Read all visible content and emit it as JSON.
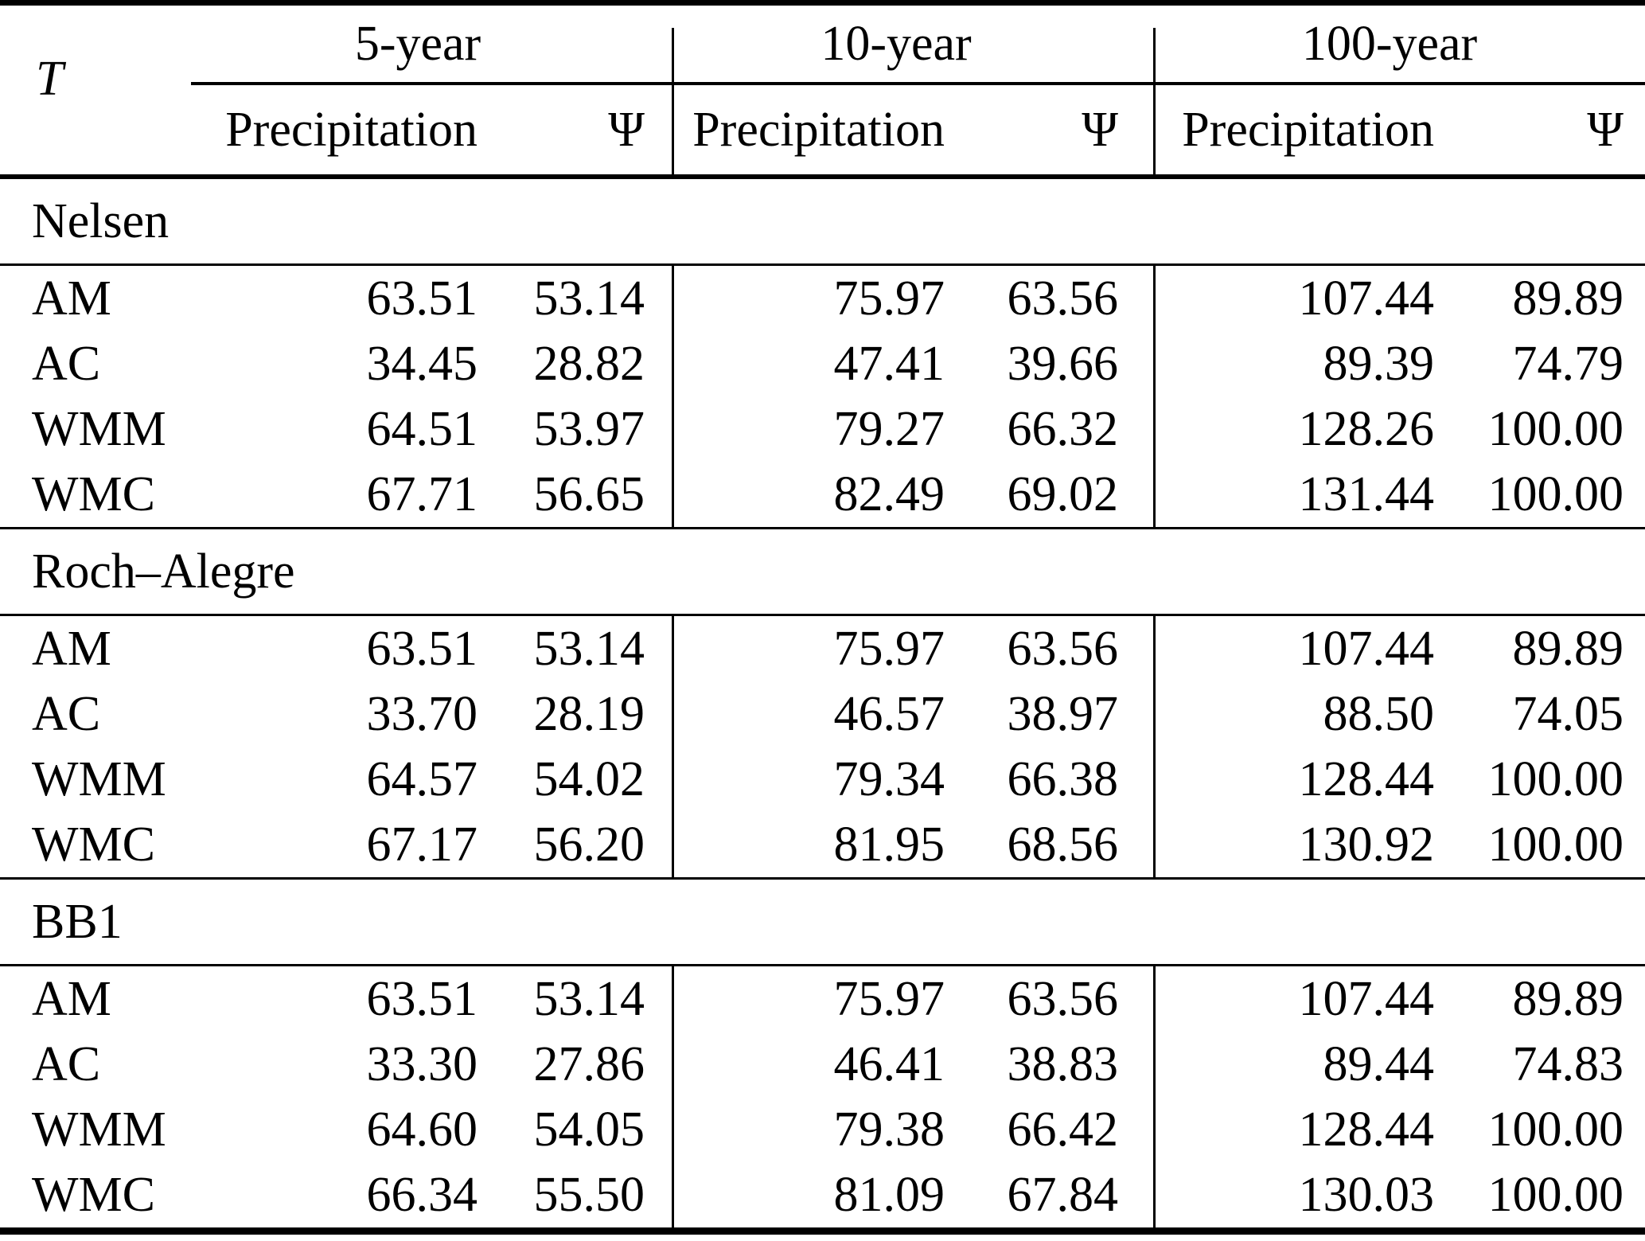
{
  "table": {
    "corner_label": "T",
    "groups": [
      {
        "label": "5-year"
      },
      {
        "label": "10-year"
      },
      {
        "label": "100-year"
      }
    ],
    "subheaders": {
      "precipitation": "Precipitation",
      "psi": "Ψ"
    },
    "sections": [
      {
        "title": "Nelsen",
        "rows": [
          {
            "label": "AM",
            "values": [
              "63.51",
              "53.14",
              "75.97",
              "63.56",
              "107.44",
              "89.89"
            ]
          },
          {
            "label": "AC",
            "values": [
              "34.45",
              "28.82",
              "47.41",
              "39.66",
              "89.39",
              "74.79"
            ]
          },
          {
            "label": "WMM",
            "values": [
              "64.51",
              "53.97",
              "79.27",
              "66.32",
              "128.26",
              "100.00"
            ]
          },
          {
            "label": "WMC",
            "values": [
              "67.71",
              "56.65",
              "82.49",
              "69.02",
              "131.44",
              "100.00"
            ]
          }
        ]
      },
      {
        "title": "Roch–Alegre",
        "rows": [
          {
            "label": "AM",
            "values": [
              "63.51",
              "53.14",
              "75.97",
              "63.56",
              "107.44",
              "89.89"
            ]
          },
          {
            "label": "AC",
            "values": [
              "33.70",
              "28.19",
              "46.57",
              "38.97",
              "88.50",
              "74.05"
            ]
          },
          {
            "label": "WMM",
            "values": [
              "64.57",
              "54.02",
              "79.34",
              "66.38",
              "128.44",
              "100.00"
            ]
          },
          {
            "label": "WMC",
            "values": [
              "67.17",
              "56.20",
              "81.95",
              "68.56",
              "130.92",
              "100.00"
            ]
          }
        ]
      },
      {
        "title": "BB1",
        "rows": [
          {
            "label": "AM",
            "values": [
              "63.51",
              "53.14",
              "75.97",
              "63.56",
              "107.44",
              "89.89"
            ]
          },
          {
            "label": "AC",
            "values": [
              "33.30",
              "27.86",
              "46.41",
              "38.83",
              "89.44",
              "74.83"
            ]
          },
          {
            "label": "WMM",
            "values": [
              "64.60",
              "54.05",
              "79.38",
              "66.42",
              "128.44",
              "100.00"
            ]
          },
          {
            "label": "WMC",
            "values": [
              "66.34",
              "55.50",
              "81.09",
              "67.84",
              "130.03",
              "100.00"
            ]
          }
        ]
      }
    ],
    "colors": {
      "text": "#000000",
      "background": "#ffffff",
      "rule": "#000000"
    }
  }
}
